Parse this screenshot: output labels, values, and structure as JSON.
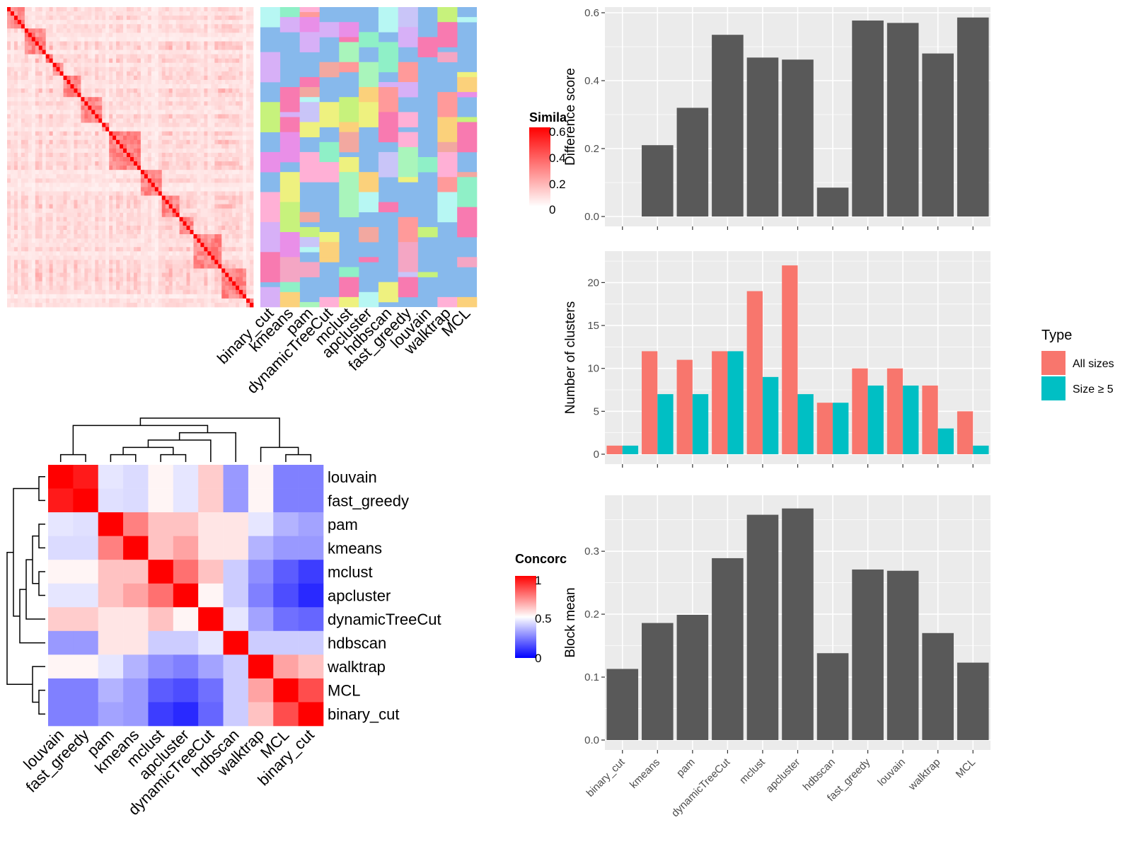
{
  "colors": {
    "bar_gray": "#595959",
    "panel_bg": "#ebebeb",
    "grid": "#ffffff",
    "all_sizes": "#f8766d",
    "size_ge5": "#00bfc4",
    "sim_low": "#ffffff",
    "sim_high": "#ff0000",
    "conc_low": "#0000ff",
    "conc_mid": "#ffffff",
    "conc_high": "#ff0000",
    "cluster_bg": "#87b9ec"
  },
  "similarity_heatmap": {
    "legend_title": "Simila",
    "legend_ticks": [
      "0.6",
      "0.4",
      "0.2",
      "0"
    ],
    "methods": [
      "binary_cut",
      "kmeans",
      "pam",
      "dynamicTreeCut",
      "mclust",
      "apcluster",
      "hdbscan",
      "fast_greedy",
      "louvain",
      "walktrap",
      "MCL"
    ]
  },
  "concordance_heatmap": {
    "legend_title": "Concorc",
    "legend_ticks": [
      "1",
      "0.5",
      "0"
    ],
    "methods": [
      "louvain",
      "fast_greedy",
      "pam",
      "kmeans",
      "mclust",
      "apcluster",
      "dynamicTreeCut",
      "hdbscan",
      "walktrap",
      "MCL",
      "binary_cut"
    ],
    "matrix": [
      [
        1.0,
        0.95,
        0.45,
        0.43,
        0.52,
        0.45,
        0.6,
        0.3,
        0.52,
        0.25,
        0.25
      ],
      [
        0.95,
        1.0,
        0.44,
        0.43,
        0.52,
        0.45,
        0.6,
        0.3,
        0.52,
        0.25,
        0.25
      ],
      [
        0.45,
        0.44,
        1.0,
        0.75,
        0.62,
        0.62,
        0.55,
        0.55,
        0.45,
        0.35,
        0.32
      ],
      [
        0.43,
        0.43,
        0.75,
        1.0,
        0.62,
        0.68,
        0.55,
        0.55,
        0.35,
        0.3,
        0.3
      ],
      [
        0.52,
        0.52,
        0.62,
        0.62,
        1.0,
        0.78,
        0.62,
        0.4,
        0.28,
        0.18,
        0.12
      ],
      [
        0.45,
        0.45,
        0.62,
        0.68,
        0.78,
        1.0,
        0.52,
        0.4,
        0.25,
        0.15,
        0.08
      ],
      [
        0.6,
        0.6,
        0.55,
        0.55,
        0.62,
        0.52,
        1.0,
        0.45,
        0.32,
        0.22,
        0.2
      ],
      [
        0.3,
        0.3,
        0.55,
        0.55,
        0.4,
        0.4,
        0.45,
        1.0,
        0.4,
        0.4,
        0.4
      ],
      [
        0.52,
        0.52,
        0.45,
        0.35,
        0.28,
        0.25,
        0.32,
        0.4,
        1.0,
        0.68,
        0.62
      ],
      [
        0.25,
        0.25,
        0.35,
        0.3,
        0.18,
        0.15,
        0.22,
        0.4,
        0.68,
        1.0,
        0.85
      ],
      [
        0.25,
        0.25,
        0.32,
        0.3,
        0.12,
        0.08,
        0.2,
        0.4,
        0.62,
        0.85,
        1.0
      ]
    ]
  },
  "chart_data": [
    {
      "type": "bar",
      "ylabel": "Difference score",
      "categories": [
        "binary_cut",
        "kmeans",
        "pam",
        "dynamicTreeCut",
        "mclust",
        "apcluster",
        "hdbscan",
        "fast_greedy",
        "louvain",
        "walktrap",
        "MCL"
      ],
      "values": [
        0.0,
        0.21,
        0.32,
        0.535,
        0.468,
        0.462,
        0.085,
        0.577,
        0.57,
        0.48,
        0.586
      ],
      "ylim": [
        0,
        0.6
      ],
      "yticks": [
        "0.0",
        "0.2",
        "0.4",
        "0.6"
      ],
      "grid": true
    },
    {
      "type": "bar",
      "ylabel": "Number of clusters",
      "categories": [
        "binary_cut",
        "kmeans",
        "pam",
        "dynamicTreeCut",
        "mclust",
        "apcluster",
        "hdbscan",
        "fast_greedy",
        "louvain",
        "walktrap",
        "MCL"
      ],
      "series": [
        {
          "name": "All sizes",
          "values": [
            1,
            12,
            11,
            12,
            19,
            22,
            6,
            10,
            10,
            8,
            5
          ]
        },
        {
          "name": "Size ≥ 5",
          "values": [
            1,
            7,
            7,
            12,
            9,
            7,
            6,
            8,
            8,
            3,
            1
          ]
        }
      ],
      "legend_title": "Type",
      "legend_position": "right",
      "ylim": [
        0,
        23
      ],
      "yticks": [
        "0",
        "5",
        "10",
        "15",
        "20"
      ],
      "grid": true
    },
    {
      "type": "bar",
      "ylabel": "Block mean",
      "categories": [
        "binary_cut",
        "kmeans",
        "pam",
        "dynamicTreeCut",
        "mclust",
        "apcluster",
        "hdbscan",
        "fast_greedy",
        "louvain",
        "walktrap",
        "MCL"
      ],
      "values": [
        0.113,
        0.186,
        0.199,
        0.289,
        0.358,
        0.368,
        0.138,
        0.271,
        0.269,
        0.17,
        0.123
      ],
      "ylim": [
        0,
        0.38
      ],
      "yticks": [
        "0.0",
        "0.1",
        "0.2",
        "0.3"
      ],
      "grid": true
    }
  ]
}
